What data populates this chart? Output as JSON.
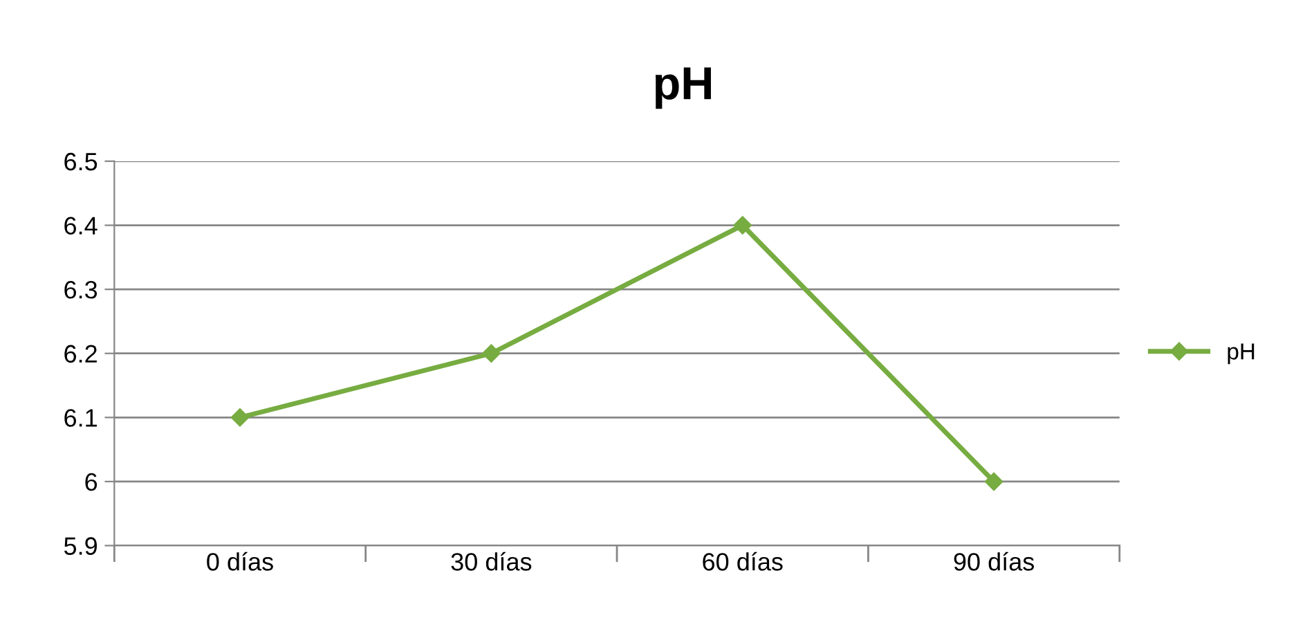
{
  "chart_data": {
    "type": "line",
    "title": "pH",
    "categories": [
      "0 días",
      "30 días",
      "60 días",
      "90 días"
    ],
    "series": [
      {
        "name": "pH",
        "color": "#77ac41",
        "values": [
          6.1,
          6.2,
          6.4,
          6.0
        ]
      }
    ],
    "ylim": [
      5.9,
      6.5
    ],
    "yticks": [
      5.9,
      6,
      6.1,
      6.2,
      6.3,
      6.4,
      6.5
    ],
    "grid": "y",
    "legend": "right",
    "marker": "diamond",
    "line_style": "solid"
  }
}
